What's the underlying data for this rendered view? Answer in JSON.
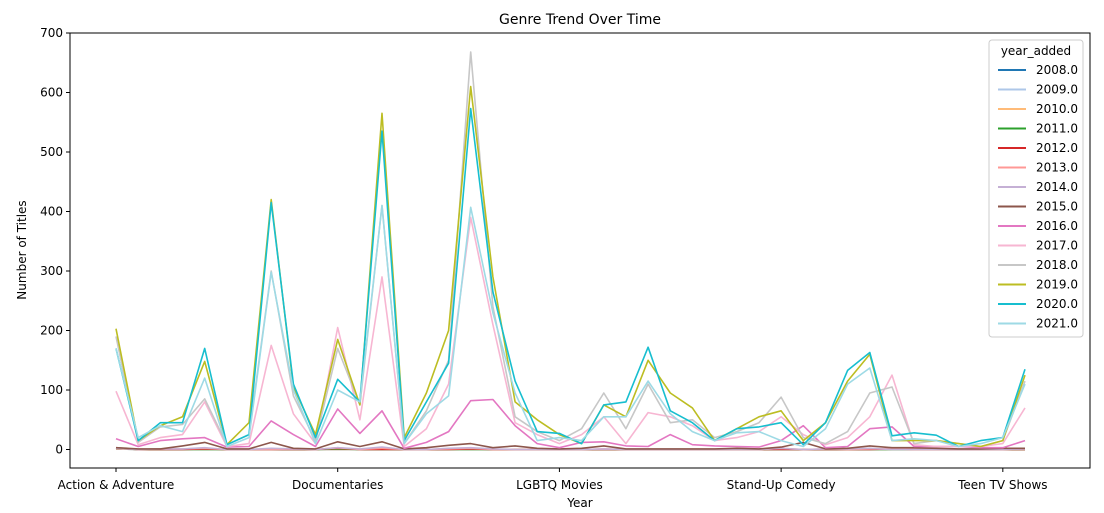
{
  "chart_data": {
    "type": "line",
    "title": "Genre Trend Over Time",
    "xlabel": "Year",
    "ylabel": "Number of Titles",
    "ylim": [
      0,
      700
    ],
    "yticks": [
      0,
      100,
      200,
      300,
      400,
      500,
      600,
      700
    ],
    "grid": false,
    "legend_title": "year_added",
    "legend_position": "top-right",
    "x_tick_labels": [
      "Action & Adventure",
      "Documentaries",
      "LGBTQ Movies",
      "Stand-Up Comedy",
      "Teen TV Shows"
    ],
    "x_tick_indices": [
      0,
      10,
      20,
      30,
      40
    ],
    "x_count": 42,
    "series": [
      {
        "name": "2008.0",
        "color": "#1f77b4",
        "values": [
          1,
          0,
          0,
          0,
          0,
          0,
          0,
          0,
          0,
          0,
          0,
          0,
          0,
          0,
          0,
          0,
          0,
          0,
          0,
          0,
          0,
          0,
          0,
          0,
          0,
          0,
          0,
          0,
          0,
          0,
          0,
          0,
          0,
          0,
          0,
          0,
          0,
          0,
          0,
          0,
          0,
          0
        ]
      },
      {
        "name": "2009.0",
        "color": "#aec7e8",
        "values": [
          1,
          0,
          0,
          0,
          0,
          0,
          0,
          0,
          0,
          0,
          1,
          0,
          0,
          0,
          0,
          0,
          0,
          0,
          0,
          0,
          0,
          0,
          0,
          0,
          0,
          0,
          0,
          0,
          0,
          0,
          0,
          0,
          0,
          0,
          0,
          0,
          0,
          0,
          0,
          0,
          0,
          0
        ]
      },
      {
        "name": "2010.0",
        "color": "#ffbb78",
        "values": [
          1,
          0,
          0,
          0,
          0,
          0,
          0,
          0,
          0,
          0,
          0,
          0,
          0,
          0,
          0,
          0,
          0,
          0,
          0,
          0,
          0,
          0,
          0,
          0,
          0,
          0,
          0,
          0,
          0,
          0,
          0,
          0,
          0,
          0,
          0,
          0,
          0,
          0,
          0,
          0,
          0,
          0
        ]
      },
      {
        "name": "2011.0",
        "color": "#2ca02c",
        "values": [
          2,
          0,
          0,
          0,
          0,
          0,
          0,
          0,
          0,
          0,
          1,
          0,
          0,
          0,
          0,
          0,
          0,
          0,
          0,
          0,
          0,
          0,
          0,
          0,
          0,
          0,
          0,
          0,
          0,
          0,
          0,
          0,
          0,
          0,
          0,
          0,
          0,
          0,
          0,
          0,
          0,
          0
        ]
      },
      {
        "name": "2012.0",
        "color": "#d62728",
        "values": [
          2,
          0,
          0,
          0,
          1,
          0,
          0,
          0,
          0,
          0,
          2,
          0,
          0,
          0,
          0,
          0,
          1,
          0,
          0,
          0,
          0,
          0,
          0,
          0,
          0,
          0,
          0,
          0,
          0,
          0,
          0,
          0,
          0,
          0,
          0,
          1,
          0,
          0,
          0,
          0,
          0,
          0
        ]
      },
      {
        "name": "2013.0",
        "color": "#ff9896",
        "values": [
          3,
          0,
          1,
          1,
          2,
          0,
          0,
          0,
          1,
          0,
          3,
          0,
          2,
          0,
          0,
          1,
          2,
          0,
          0,
          0,
          0,
          0,
          1,
          0,
          0,
          0,
          0,
          0,
          0,
          0,
          2,
          0,
          1,
          0,
          1,
          1,
          0,
          0,
          0,
          0,
          0,
          1
        ]
      },
      {
        "name": "2014.0",
        "color": "#c5b0d5",
        "values": [
          2,
          0,
          1,
          1,
          3,
          0,
          0,
          2,
          1,
          0,
          3,
          1,
          4,
          0,
          0,
          2,
          3,
          1,
          0,
          0,
          0,
          0,
          1,
          0,
          0,
          0,
          0,
          0,
          0,
          0,
          2,
          0,
          1,
          1,
          2,
          0,
          0,
          0,
          0,
          0,
          0,
          1
        ]
      },
      {
        "name": "2015.0",
        "color": "#8c564b",
        "values": [
          3,
          1,
          1,
          6,
          12,
          1,
          1,
          12,
          2,
          1,
          13,
          5,
          13,
          1,
          3,
          7,
          10,
          3,
          6,
          2,
          1,
          2,
          6,
          1,
          1,
          1,
          1,
          1,
          2,
          1,
          4,
          12,
          1,
          2,
          6,
          3,
          3,
          2,
          1,
          1,
          2,
          2
        ]
      },
      {
        "name": "2016.0",
        "color": "#e377c2",
        "values": [
          18,
          5,
          15,
          18,
          20,
          4,
          5,
          48,
          25,
          5,
          68,
          27,
          65,
          2,
          12,
          30,
          82,
          84,
          40,
          10,
          3,
          12,
          13,
          6,
          5,
          25,
          8,
          6,
          5,
          4,
          15,
          40,
          3,
          5,
          35,
          38,
          5,
          5,
          5,
          3,
          3,
          15
        ]
      },
      {
        "name": "2017.0",
        "color": "#f7b6d2",
        "values": [
          98,
          8,
          20,
          25,
          80,
          5,
          10,
          175,
          60,
          10,
          205,
          50,
          290,
          5,
          35,
          110,
          390,
          210,
          45,
          25,
          10,
          25,
          55,
          10,
          62,
          55,
          40,
          15,
          20,
          30,
          55,
          25,
          8,
          20,
          55,
          125,
          8,
          5,
          5,
          5,
          10,
          70
        ]
      },
      {
        "name": "2018.0",
        "color": "#c7c7c7",
        "values": [
          190,
          12,
          38,
          42,
          85,
          8,
          25,
          300,
          90,
          15,
          170,
          75,
          410,
          10,
          65,
          150,
          668,
          240,
          55,
          30,
          15,
          35,
          95,
          35,
          110,
          45,
          50,
          20,
          30,
          45,
          88,
          20,
          10,
          30,
          95,
          105,
          10,
          15,
          10,
          5,
          15,
          115
        ]
      },
      {
        "name": "2019.0",
        "color": "#bcbd22",
        "values": [
          203,
          15,
          40,
          55,
          148,
          8,
          45,
          420,
          105,
          25,
          185,
          75,
          565,
          20,
          95,
          200,
          610,
          290,
          80,
          50,
          25,
          10,
          75,
          55,
          150,
          95,
          70,
          15,
          35,
          55,
          65,
          15,
          45,
          115,
          160,
          15,
          15,
          15,
          10,
          5,
          15,
          125
        ]
      },
      {
        "name": "2020.0",
        "color": "#17becf",
        "values": [
          170,
          15,
          45,
          45,
          170,
          8,
          25,
          415,
          110,
          20,
          118,
          80,
          535,
          15,
          80,
          145,
          573,
          265,
          115,
          30,
          27,
          10,
          75,
          80,
          172,
          65,
          45,
          15,
          35,
          38,
          45,
          8,
          45,
          133,
          163,
          23,
          28,
          24,
          5,
          15,
          20,
          135
        ]
      },
      {
        "name": "2021.0",
        "color": "#9edae5",
        "values": [
          170,
          20,
          40,
          30,
          120,
          5,
          20,
          298,
          100,
          10,
          100,
          80,
          410,
          10,
          60,
          90,
          407,
          230,
          95,
          15,
          20,
          15,
          55,
          55,
          115,
          60,
          30,
          15,
          28,
          30,
          15,
          5,
          35,
          110,
          137,
          15,
          18,
          15,
          5,
          10,
          20,
          110
        ]
      }
    ]
  }
}
